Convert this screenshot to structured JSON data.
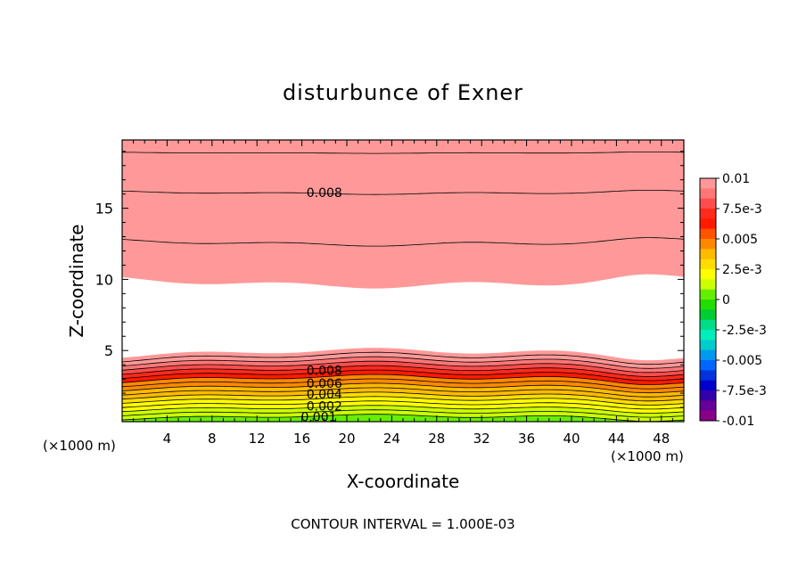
{
  "chart_data": {
    "type": "heatmap",
    "title": "disturbunce of Exner",
    "xlabel": "X-coordinate",
    "ylabel": "Z-coordinate",
    "x_unit_left": "(×1000 m)",
    "x_unit_right": "(×1000 m)",
    "footer": "CONTOUR INTERVAL = 1.000E-03",
    "xlim": [
      0,
      50
    ],
    "ylim": [
      0,
      19.8
    ],
    "x_ticks": [
      4,
      8,
      12,
      16,
      20,
      24,
      28,
      32,
      36,
      40,
      44,
      48
    ],
    "y_ticks": [
      5,
      10,
      15
    ],
    "grid": false,
    "colorbar": {
      "placement": "right",
      "range": [
        -0.01,
        0.01
      ],
      "labels": [
        "0.01",
        "7.5e-3",
        "0.005",
        "2.5e-3",
        "0",
        "-2.5e-3",
        "-0.005",
        "-7.5e-3",
        "-0.01"
      ],
      "colors": [
        "#ff9999",
        "#ff7777",
        "#ff4d4d",
        "#ff2a1a",
        "#ff1a00",
        "#ff5500",
        "#ff8800",
        "#ffbb00",
        "#ffdd00",
        "#ffff00",
        "#ccff00",
        "#66ee00",
        "#22dd00",
        "#00cc33",
        "#00dd88",
        "#00eebb",
        "#00cccc",
        "#0099ee",
        "#0066ff",
        "#0033dd",
        "#0000cc",
        "#3300aa",
        "#660099",
        "#880088"
      ]
    },
    "contour_labels": [
      "0.008",
      "0.008",
      "0.006",
      "0.004",
      "0.002",
      "0.001"
    ],
    "contour_interval": 0.001,
    "profile_lower": {
      "z": [
        0.3,
        0.6,
        0.9,
        1.2,
        1.5,
        1.8,
        2.1,
        2.4,
        2.7,
        3.0,
        3.3,
        3.6,
        3.9,
        4.2,
        4.5,
        4.8
      ],
      "exner": [
        0.0005,
        0.001,
        0.0015,
        0.002,
        0.0025,
        0.003,
        0.0035,
        0.004,
        0.0045,
        0.005,
        0.006,
        0.007,
        0.008,
        0.009,
        0.0095,
        0.01
      ]
    },
    "profile_upper": {
      "z": [
        9.8,
        11.0,
        12.2,
        13.5,
        14.9,
        16.0,
        17.5,
        19.0
      ],
      "exner": [
        0.01,
        0.0095,
        0.009,
        0.0085,
        0.008,
        0.0075,
        0.007,
        0.0065
      ]
    },
    "undisturbed_band": [
      5.0,
      9.6
    ]
  }
}
